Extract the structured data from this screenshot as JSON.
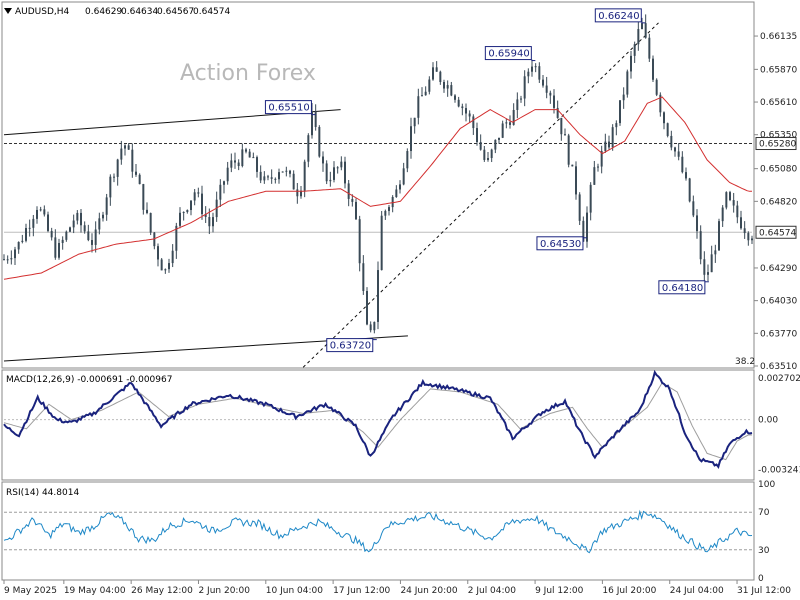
{
  "symbol_line": {
    "symbol": "AUDUSD,H4",
    "open": "0.64629",
    "high": "0.64634",
    "low": "0.64567",
    "close": "0.64574"
  },
  "watermark": "Action Forex",
  "colors": {
    "candles": "#3a4a56",
    "ma": "#d32f2f",
    "macd": "#1a237e",
    "signal": "#9e9e9e",
    "rsi": "#1e88c7",
    "label_border": "#1a237e",
    "label_text": "#1a237e"
  },
  "chart_data": [
    {
      "type": "candlestick",
      "name": "price",
      "ylim": [
        0.6351,
        0.6639
      ],
      "y_ticks": [
        "0.66135",
        "0.65870",
        "0.65610",
        "0.65350",
        "0.65080",
        "0.64820",
        "0.64290",
        "0.64030",
        "0.63770",
        "0.63510"
      ],
      "y_tick_values": [
        0.66135,
        0.6587,
        0.6561,
        0.6535,
        0.6508,
        0.6482,
        0.6429,
        0.6403,
        0.6377,
        0.6351
      ],
      "x_ticks": [
        "9 May 2025",
        "19 May 04:00",
        "26 May 12:00",
        "2 Jun 20:00",
        "10 Jun 04:00",
        "17 Jun 12:00",
        "24 Jun 20:00",
        "2 Jul 04:00",
        "9 Jul 12:00",
        "16 Jul 20:00",
        "24 Jul 04:00",
        "31 Jul 12:00"
      ],
      "x_tick_pos": [
        0.0,
        0.08,
        0.17,
        0.26,
        0.35,
        0.44,
        0.53,
        0.62,
        0.71,
        0.8,
        0.89,
        0.98
      ],
      "last_price": "0.64574",
      "last_price_value": 0.64574,
      "dotted_level": "0.65280",
      "dotted_level_value": 0.6528,
      "fib_label": "38.2",
      "swing_labels": [
        {
          "text": "0.66240",
          "value": 0.6624,
          "t": 0.852
        },
        {
          "text": "0.65940",
          "value": 0.6594,
          "t": 0.705
        },
        {
          "text": "0.65510",
          "value": 0.6551,
          "t": 0.411
        },
        {
          "text": "0.64530",
          "value": 0.6453,
          "t": 0.774
        },
        {
          "text": "0.64180",
          "value": 0.6418,
          "t": 0.937
        },
        {
          "text": "0.63720",
          "value": 0.6372,
          "t": 0.493
        }
      ],
      "anchors": [
        [
          0.0,
          0.6436
        ],
        [
          0.02,
          0.6448
        ],
        [
          0.045,
          0.648
        ],
        [
          0.07,
          0.644
        ],
        [
          0.095,
          0.647
        ],
        [
          0.12,
          0.6448
        ],
        [
          0.14,
          0.6495
        ],
        [
          0.16,
          0.653
        ],
        [
          0.18,
          0.6495
        ],
        [
          0.2,
          0.6448
        ],
        [
          0.215,
          0.6425
        ],
        [
          0.235,
          0.647
        ],
        [
          0.255,
          0.649
        ],
        [
          0.275,
          0.6462
        ],
        [
          0.3,
          0.651
        ],
        [
          0.325,
          0.652
        ],
        [
          0.35,
          0.6495
        ],
        [
          0.37,
          0.651
        ],
        [
          0.395,
          0.6488
        ],
        [
          0.411,
          0.6551
        ],
        [
          0.43,
          0.65
        ],
        [
          0.45,
          0.651
        ],
        [
          0.47,
          0.647
        ],
        [
          0.485,
          0.638
        ],
        [
          0.493,
          0.6372
        ],
        [
          0.505,
          0.647
        ],
        [
          0.525,
          0.649
        ],
        [
          0.55,
          0.6555
        ],
        [
          0.575,
          0.6585
        ],
        [
          0.6,
          0.657
        ],
        [
          0.625,
          0.6545
        ],
        [
          0.645,
          0.651
        ],
        [
          0.665,
          0.654
        ],
        [
          0.685,
          0.6555
        ],
        [
          0.705,
          0.6594
        ],
        [
          0.73,
          0.657
        ],
        [
          0.75,
          0.653
        ],
        [
          0.765,
          0.649
        ],
        [
          0.774,
          0.6453
        ],
        [
          0.79,
          0.651
        ],
        [
          0.81,
          0.653
        ],
        [
          0.825,
          0.656
        ],
        [
          0.84,
          0.66
        ],
        [
          0.852,
          0.6624
        ],
        [
          0.865,
          0.659
        ],
        [
          0.88,
          0.655
        ],
        [
          0.895,
          0.6525
        ],
        [
          0.91,
          0.65
        ],
        [
          0.925,
          0.646
        ],
        [
          0.937,
          0.6418
        ],
        [
          0.952,
          0.645
        ],
        [
          0.965,
          0.6485
        ],
        [
          0.98,
          0.647
        ],
        [
          0.995,
          0.6457
        ]
      ],
      "ma_anchors": [
        [
          0.0,
          0.642
        ],
        [
          0.05,
          0.6425
        ],
        [
          0.1,
          0.644
        ],
        [
          0.15,
          0.6448
        ],
        [
          0.2,
          0.6452
        ],
        [
          0.25,
          0.6465
        ],
        [
          0.3,
          0.6482
        ],
        [
          0.35,
          0.649
        ],
        [
          0.4,
          0.649
        ],
        [
          0.45,
          0.6492
        ],
        [
          0.49,
          0.6478
        ],
        [
          0.53,
          0.6482
        ],
        [
          0.57,
          0.651
        ],
        [
          0.61,
          0.654
        ],
        [
          0.65,
          0.6555
        ],
        [
          0.68,
          0.6545
        ],
        [
          0.71,
          0.6555
        ],
        [
          0.74,
          0.6555
        ],
        [
          0.77,
          0.6535
        ],
        [
          0.8,
          0.652
        ],
        [
          0.83,
          0.653
        ],
        [
          0.86,
          0.656
        ],
        [
          0.88,
          0.6565
        ],
        [
          0.91,
          0.6545
        ],
        [
          0.94,
          0.6515
        ],
        [
          0.97,
          0.6497
        ],
        [
          0.995,
          0.649
        ]
      ],
      "trendlines": [
        {
          "from": [
            0.0,
            0.6535
          ],
          "to": [
            0.45,
            0.6555
          ]
        },
        {
          "from": [
            0.0,
            0.6355
          ],
          "to": [
            0.54,
            0.6375
          ]
        },
        {
          "from": [
            0.4,
            0.635
          ],
          "to": [
            0.875,
            0.6624
          ],
          "dashed": true
        }
      ],
      "candle_count": 205
    },
    {
      "type": "line",
      "name": "MACD",
      "label": "MACD(12,26,9) -0.000691 -0.000967",
      "ylim": [
        -0.0038,
        0.0031
      ],
      "y_ticks": [
        "0.002702",
        "0.00",
        "-0.003241"
      ],
      "y_tick_values": [
        0.002702,
        0.0,
        -0.003241
      ],
      "macd_anchors": [
        [
          0.0,
          -0.0004
        ],
        [
          0.02,
          -0.001
        ],
        [
          0.045,
          0.0014
        ],
        [
          0.07,
          0.0
        ],
        [
          0.09,
          -0.0002
        ],
        [
          0.12,
          0.0004
        ],
        [
          0.17,
          0.0024
        ],
        [
          0.21,
          -0.0004
        ],
        [
          0.25,
          0.001
        ],
        [
          0.3,
          0.0016
        ],
        [
          0.35,
          0.001
        ],
        [
          0.39,
          0.0002
        ],
        [
          0.43,
          0.001
        ],
        [
          0.47,
          -0.0004
        ],
        [
          0.49,
          -0.0024
        ],
        [
          0.52,
          0.0002
        ],
        [
          0.56,
          0.0024
        ],
        [
          0.6,
          0.002
        ],
        [
          0.65,
          0.0014
        ],
        [
          0.68,
          -0.0012
        ],
        [
          0.72,
          0.0005
        ],
        [
          0.75,
          0.0012
        ],
        [
          0.77,
          -0.0008
        ],
        [
          0.79,
          -0.0024
        ],
        [
          0.82,
          -0.0008
        ],
        [
          0.85,
          0.0006
        ],
        [
          0.87,
          0.003
        ],
        [
          0.89,
          0.002
        ],
        [
          0.91,
          -0.0008
        ],
        [
          0.93,
          -0.0026
        ],
        [
          0.955,
          -0.003
        ],
        [
          0.97,
          -0.0016
        ],
        [
          0.99,
          -0.0008
        ]
      ],
      "signal_anchors": [
        [
          0.0,
          -0.0002
        ],
        [
          0.03,
          -0.0006
        ],
        [
          0.06,
          0.001
        ],
        [
          0.09,
          0.0
        ],
        [
          0.13,
          0.0006
        ],
        [
          0.18,
          0.0018
        ],
        [
          0.22,
          0.0002
        ],
        [
          0.26,
          0.001
        ],
        [
          0.31,
          0.0014
        ],
        [
          0.36,
          0.0008
        ],
        [
          0.4,
          0.0004
        ],
        [
          0.44,
          0.0006
        ],
        [
          0.48,
          -0.0008
        ],
        [
          0.5,
          -0.0018
        ],
        [
          0.53,
          0.0
        ],
        [
          0.57,
          0.002
        ],
        [
          0.61,
          0.0018
        ],
        [
          0.66,
          0.001
        ],
        [
          0.69,
          -0.0006
        ],
        [
          0.73,
          0.0004
        ],
        [
          0.76,
          0.0008
        ],
        [
          0.78,
          -0.0006
        ],
        [
          0.8,
          -0.0018
        ],
        [
          0.83,
          -0.0004
        ],
        [
          0.86,
          0.0008
        ],
        [
          0.88,
          0.0024
        ],
        [
          0.9,
          0.0018
        ],
        [
          0.92,
          -0.0004
        ],
        [
          0.94,
          -0.0022
        ],
        [
          0.965,
          -0.0026
        ],
        [
          0.98,
          -0.0014
        ],
        [
          0.995,
          -0.001
        ]
      ]
    },
    {
      "type": "line",
      "name": "RSI",
      "label": "RSI(14) 44.8014",
      "ylim": [
        0,
        100
      ],
      "y_ticks": [
        "100",
        "70",
        "30",
        "0"
      ],
      "y_tick_values": [
        100,
        70,
        30,
        0
      ],
      "rsi_anchors": [
        [
          0.0,
          38
        ],
        [
          0.02,
          50
        ],
        [
          0.04,
          62
        ],
        [
          0.06,
          45
        ],
        [
          0.08,
          58
        ],
        [
          0.1,
          48
        ],
        [
          0.12,
          55
        ],
        [
          0.14,
          68
        ],
        [
          0.16,
          60
        ],
        [
          0.18,
          42
        ],
        [
          0.2,
          40
        ],
        [
          0.22,
          55
        ],
        [
          0.25,
          62
        ],
        [
          0.28,
          50
        ],
        [
          0.31,
          60
        ],
        [
          0.34,
          58
        ],
        [
          0.37,
          45
        ],
        [
          0.4,
          55
        ],
        [
          0.42,
          60
        ],
        [
          0.45,
          48
        ],
        [
          0.47,
          40
        ],
        [
          0.49,
          28
        ],
        [
          0.51,
          55
        ],
        [
          0.54,
          62
        ],
        [
          0.57,
          66
        ],
        [
          0.6,
          58
        ],
        [
          0.63,
          48
        ],
        [
          0.65,
          42
        ],
        [
          0.68,
          60
        ],
        [
          0.71,
          64
        ],
        [
          0.73,
          52
        ],
        [
          0.76,
          40
        ],
        [
          0.78,
          28
        ],
        [
          0.8,
          50
        ],
        [
          0.83,
          60
        ],
        [
          0.86,
          70
        ],
        [
          0.88,
          62
        ],
        [
          0.9,
          48
        ],
        [
          0.92,
          38
        ],
        [
          0.94,
          28
        ],
        [
          0.96,
          40
        ],
        [
          0.98,
          50
        ],
        [
          0.995,
          45
        ]
      ]
    }
  ]
}
